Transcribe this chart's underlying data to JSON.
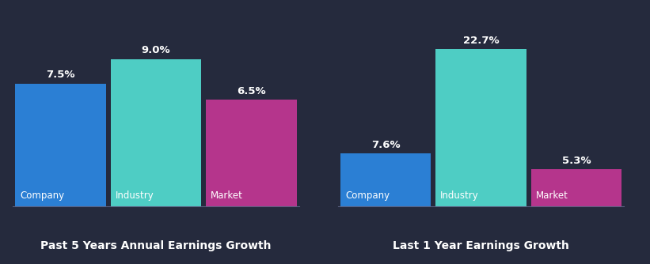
{
  "background_color": "#252a3d",
  "chart1": {
    "title": "Past 5 Years Annual Earnings Growth",
    "bars": [
      {
        "label": "Company",
        "value": 7.5,
        "color": "#2b7fd4"
      },
      {
        "label": "Industry",
        "value": 9.0,
        "color": "#4ecdc4"
      },
      {
        "label": "Market",
        "value": 6.5,
        "color": "#b5358c"
      }
    ],
    "ylim": [
      0,
      11
    ]
  },
  "chart2": {
    "title": "Last 1 Year Earnings Growth",
    "bars": [
      {
        "label": "Company",
        "value": 7.6,
        "color": "#2b7fd4"
      },
      {
        "label": "Industry",
        "value": 22.7,
        "color": "#4ecdc4"
      },
      {
        "label": "Market",
        "value": 5.3,
        "color": "#b5358c"
      }
    ],
    "ylim": [
      0,
      26
    ]
  },
  "bar_width": 0.95,
  "text_color": "#ffffff",
  "title_color": "#ffffff",
  "label_fontsize": 8.5,
  "value_fontsize": 9.5,
  "title_fontsize": 10
}
